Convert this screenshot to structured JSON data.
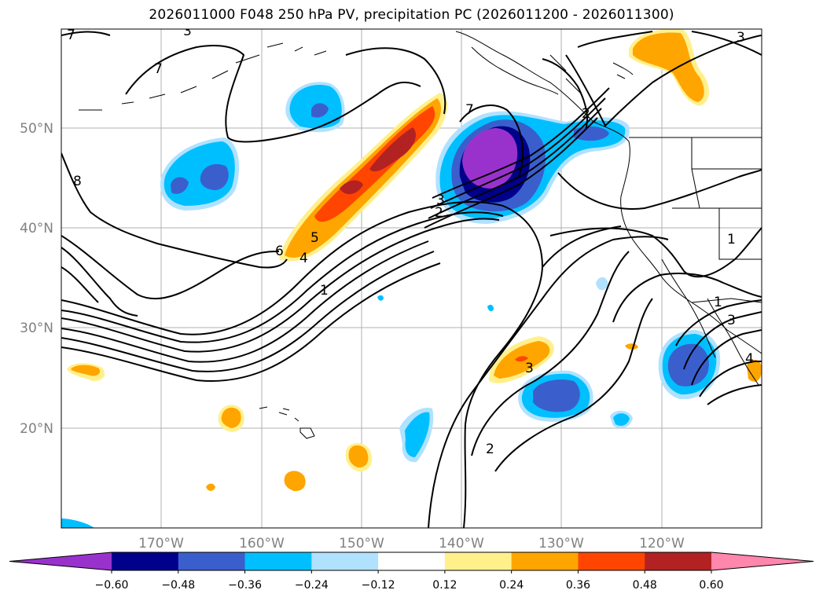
{
  "title": "2026011000 F048 250 hPa PV, precipitation PC (2026011200 - 2026011300)",
  "map": {
    "projection": "PlateCarree",
    "lon_range": [
      -180,
      -110
    ],
    "lat_range": [
      10,
      60
    ],
    "lat_ticks": [
      {
        "value": 50,
        "label": "50°N"
      },
      {
        "value": 40,
        "label": "40°N"
      },
      {
        "value": 30,
        "label": "30°N"
      },
      {
        "value": 20,
        "label": "20°N"
      }
    ],
    "lon_ticks": [
      {
        "value": -170,
        "label": "170°W"
      },
      {
        "value": -160,
        "label": "160°W"
      },
      {
        "value": -150,
        "label": "150°W"
      },
      {
        "value": -140,
        "label": "140°W"
      },
      {
        "value": -130,
        "label": "130°W"
      },
      {
        "value": -120,
        "label": "120°W"
      }
    ]
  },
  "pv_contour_labels": [
    "7",
    "7",
    "8",
    "6",
    "5",
    "4",
    "3",
    "2",
    "1",
    "1",
    "1",
    "3",
    "2",
    "3",
    "4",
    "3",
    "2",
    "7",
    "3"
  ],
  "colorbar": {
    "ticks": [
      "−0.60",
      "−0.48",
      "−0.36",
      "−0.24",
      "−0.12",
      "0.12",
      "0.24",
      "0.36",
      "0.48",
      "0.60"
    ],
    "colors": [
      "#9932cc",
      "#00008b",
      "#3a5fcd",
      "#00bfff",
      "#b0e2ff",
      "#ffffff",
      "#fff08c",
      "#ffa500",
      "#ff4500",
      "#b22222",
      "#ff86ac"
    ],
    "extend": "both"
  }
}
